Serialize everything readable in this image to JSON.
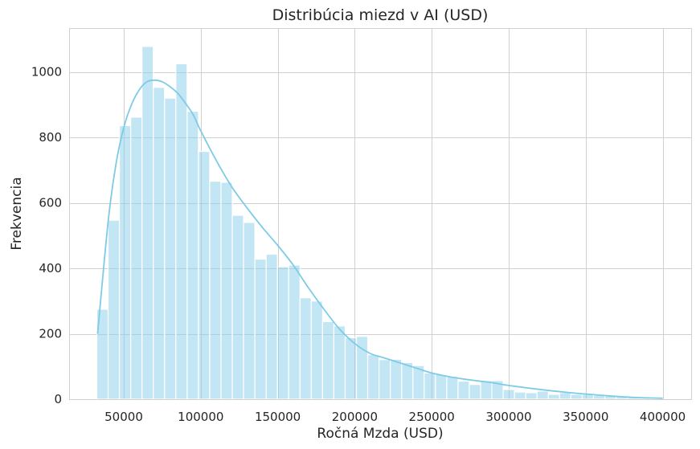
{
  "chart_data": {
    "type": "bar",
    "title": "Distribúcia miezd v AI (USD)",
    "xlabel": "Ročná Mzda (USD)",
    "ylabel": "Frekvencia",
    "xlim": [
      14500,
      418500
    ],
    "ylim": [
      0,
      1134
    ],
    "xticks": [
      50000,
      100000,
      150000,
      200000,
      250000,
      300000,
      350000,
      400000
    ],
    "xtick_labels": [
      "50000",
      "100000",
      "150000",
      "200000",
      "250000",
      "300000",
      "350000",
      "400000"
    ],
    "yticks": [
      0,
      200,
      400,
      600,
      800,
      1000
    ],
    "ytick_labels": [
      "0",
      "200",
      "400",
      "600",
      "800",
      "1000"
    ],
    "grid": true,
    "bar_color": "#87ceeb",
    "kde_color": "#7ecbe6",
    "bins": {
      "start": 32500,
      "width": 7331,
      "counts": [
        275,
        547,
        836,
        862,
        1078,
        953,
        920,
        1025,
        880,
        757,
        666,
        663,
        562,
        540,
        428,
        443,
        405,
        410,
        310,
        300,
        237,
        224,
        188,
        192,
        136,
        121,
        122,
        112,
        103,
        80,
        75,
        70,
        55,
        45,
        57,
        57,
        30,
        22,
        20,
        25,
        15,
        20,
        15,
        15,
        12,
        10,
        8,
        7,
        5,
        3
      ]
    },
    "kde": {
      "x": [
        33000,
        40000,
        45000,
        50000,
        55000,
        60000,
        65000,
        70000,
        75000,
        80000,
        85000,
        90000,
        95000,
        100000,
        110000,
        120000,
        130000,
        140000,
        150000,
        160000,
        170000,
        180000,
        190000,
        200000,
        210000,
        220000,
        230000,
        240000,
        250000,
        260000,
        270000,
        280000,
        290000,
        300000,
        320000,
        340000,
        360000,
        380000,
        400000
      ],
      "y": [
        200,
        550,
        720,
        830,
        900,
        945,
        970,
        975,
        970,
        955,
        935,
        905,
        870,
        820,
        730,
        650,
        585,
        525,
        470,
        410,
        340,
        275,
        215,
        170,
        140,
        125,
        110,
        95,
        80,
        70,
        62,
        56,
        50,
        42,
        30,
        20,
        12,
        6,
        3
      ]
    }
  }
}
